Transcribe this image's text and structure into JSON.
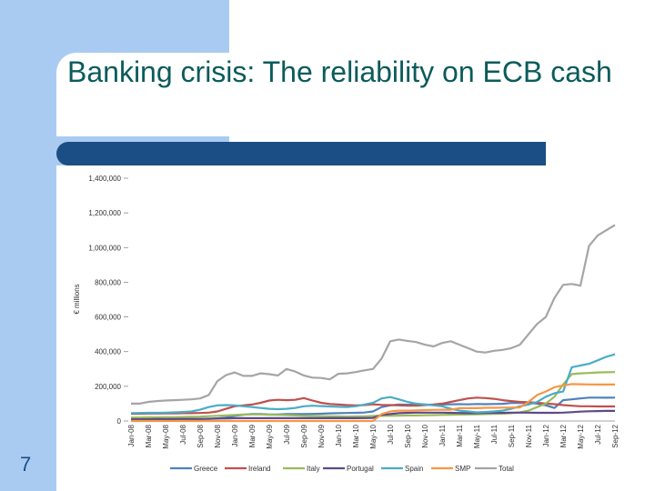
{
  "slide": {
    "title": "Banking crisis: The reliability on ECB cash",
    "number": "7"
  },
  "colors": {
    "accent": "#a9cbf2",
    "bar": "#1b4e84",
    "title": "#0c5b5b"
  },
  "chart_data": {
    "type": "line",
    "title": "",
    "xlabel": "",
    "ylabel": "€ millions",
    "ylim": [
      0,
      1400000
    ],
    "yticks": [
      0,
      200000,
      400000,
      600000,
      800000,
      1000000,
      1200000,
      1400000
    ],
    "ytick_labels": [
      "0",
      "200,000",
      "400,000",
      "600,000",
      "800,000",
      "1,000,000",
      "1,200,000",
      "1,400,000"
    ],
    "x_tick_labels": [
      "Jan-08",
      "Mar-08",
      "May-08",
      "Jul-08",
      "Sep-08",
      "Nov-08",
      "Jan-09",
      "Mar-09",
      "May-09",
      "Jul-09",
      "Sep-09",
      "Nov-09",
      "Jan-10",
      "Mar-10",
      "May-10",
      "Jul-10",
      "Sep-10",
      "Nov-10",
      "Jan-11",
      "Mar-11",
      "May-11",
      "Jul-11",
      "Sep-11",
      "Nov-11",
      "Jan-12",
      "Mar-12",
      "May-12",
      "Jul-12",
      "Sep-12"
    ],
    "months": 57,
    "legend_position": "bottom",
    "series": [
      {
        "name": "Greece",
        "color": "#4f81bd",
        "values": [
          8000,
          8000,
          9000,
          9000,
          10000,
          10000,
          10000,
          10000,
          11000,
          12000,
          15000,
          20000,
          30000,
          36000,
          40000,
          40000,
          38000,
          38000,
          40000,
          40000,
          40000,
          41000,
          42000,
          44000,
          45000,
          46000,
          47000,
          49000,
          55000,
          80000,
          90000,
          95000,
          94000,
          94000,
          95000,
          93000,
          95000,
          96000,
          97000,
          96000,
          98000,
          97000,
          98000,
          99000,
          104000,
          104000,
          104000,
          100000,
          90000,
          75000,
          120000,
          125000,
          130000,
          135000,
          135000,
          134000,
          135000
        ]
      },
      {
        "name": "Ireland",
        "color": "#c0504d",
        "values": [
          42000,
          42000,
          43000,
          43000,
          44000,
          44000,
          45000,
          45000,
          46000,
          48000,
          55000,
          70000,
          85000,
          90000,
          95000,
          105000,
          118000,
          122000,
          120000,
          122000,
          132000,
          118000,
          105000,
          98000,
          95000,
          92000,
          90000,
          92000,
          96000,
          93000,
          92000,
          90000,
          88000,
          88000,
          92000,
          95000,
          100000,
          110000,
          120000,
          130000,
          135000,
          132000,
          128000,
          120000,
          115000,
          110000,
          108000,
          105000,
          100000,
          97000,
          92000,
          88000,
          85000,
          85000,
          84000,
          84000,
          84000
        ]
      },
      {
        "name": "Italy",
        "color": "#9bbb59",
        "values": [
          20000,
          20000,
          21000,
          21000,
          22000,
          22000,
          23000,
          24000,
          25000,
          28000,
          30000,
          32000,
          35000,
          37000,
          38000,
          38000,
          36000,
          35000,
          34000,
          32000,
          30000,
          29000,
          28000,
          27000,
          26000,
          25000,
          26000,
          27000,
          29000,
          31000,
          30000,
          31000,
          32000,
          32000,
          33000,
          34000,
          35000,
          36000,
          37000,
          38000,
          39000,
          40000,
          41000,
          42000,
          45000,
          50000,
          60000,
          80000,
          100000,
          140000,
          210000,
          270000,
          275000,
          277000,
          280000,
          281000,
          282000
        ]
      },
      {
        "name": "Portugal",
        "color": "#5c4a8a",
        "values": [
          10000,
          10000,
          10000,
          11000,
          11000,
          11000,
          12000,
          12000,
          12000,
          13000,
          14000,
          15000,
          16000,
          16000,
          16000,
          16000,
          16000,
          16000,
          16000,
          16000,
          16000,
          16000,
          16000,
          16000,
          16000,
          16000,
          16000,
          17000,
          18000,
          35000,
          40000,
          45000,
          47000,
          48000,
          48000,
          48000,
          48000,
          47000,
          46000,
          45000,
          45000,
          46000,
          47000,
          47000,
          48000,
          48000,
          48000,
          47000,
          47000,
          47000,
          48000,
          51000,
          54000,
          56000,
          57000,
          58000,
          58000
        ]
      },
      {
        "name": "Spain",
        "color": "#4bacc6",
        "values": [
          45000,
          46000,
          47000,
          47000,
          48000,
          50000,
          52000,
          55000,
          65000,
          80000,
          90000,
          92000,
          90000,
          85000,
          80000,
          75000,
          70000,
          68000,
          70000,
          75000,
          85000,
          88000,
          86000,
          84000,
          82000,
          80000,
          85000,
          95000,
          105000,
          130000,
          138000,
          125000,
          110000,
          100000,
          95000,
          90000,
          85000,
          70000,
          60000,
          55000,
          50000,
          52000,
          55000,
          60000,
          70000,
          85000,
          95000,
          110000,
          140000,
          160000,
          170000,
          310000,
          320000,
          330000,
          350000,
          370000,
          385000
        ]
      },
      {
        "name": "SMP",
        "color": "#f79646",
        "values": [
          0,
          0,
          0,
          0,
          0,
          0,
          0,
          0,
          0,
          0,
          0,
          0,
          0,
          0,
          0,
          0,
          0,
          0,
          0,
          0,
          0,
          0,
          0,
          0,
          0,
          0,
          0,
          0,
          0,
          40000,
          55000,
          60000,
          60000,
          61000,
          63000,
          64000,
          65000,
          65000,
          74000,
          74000,
          74000,
          76000,
          76000,
          77000,
          77000,
          78000,
          110000,
          150000,
          170000,
          195000,
          205000,
          213000,
          212000,
          211000,
          210000,
          210000,
          210000
        ]
      },
      {
        "name": "Total",
        "color": "#a5a5a5",
        "values": [
          100000,
          100000,
          110000,
          115000,
          118000,
          120000,
          122000,
          125000,
          130000,
          150000,
          230000,
          265000,
          280000,
          260000,
          260000,
          275000,
          270000,
          262000,
          300000,
          285000,
          262000,
          250000,
          248000,
          240000,
          272000,
          275000,
          282000,
          292000,
          300000,
          360000,
          460000,
          470000,
          462000,
          455000,
          440000,
          430000,
          450000,
          460000,
          440000,
          420000,
          400000,
          395000,
          405000,
          410000,
          420000,
          440000,
          500000,
          560000,
          600000,
          710000,
          785000,
          790000,
          780000,
          1010000,
          1070000,
          1100000,
          1130000
        ]
      }
    ]
  }
}
